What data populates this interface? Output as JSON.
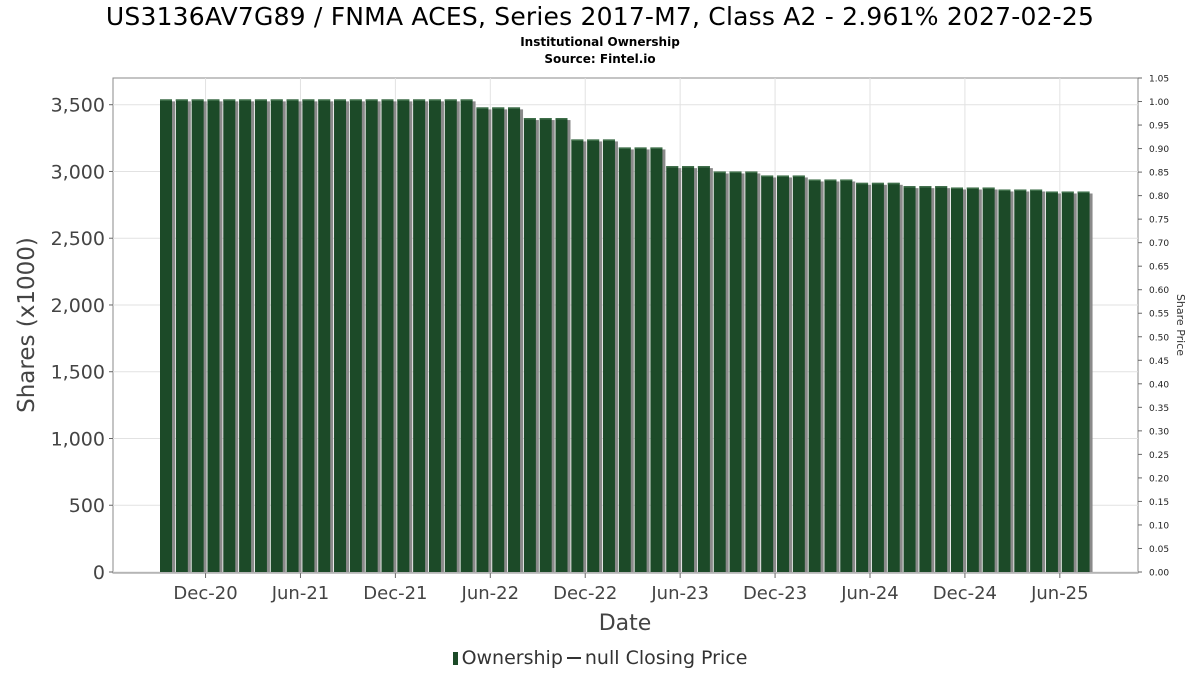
{
  "chart_data": {
    "type": "bar",
    "title": "US3136AV7G89 / FNMA ACES, Series 2017-M7, Class A2 - 2.961% 2027-02-25",
    "subtitle_lines": [
      "Institutional Ownership",
      "Source: Fintel.io"
    ],
    "xlabel": "Date",
    "ylabel": "Shares (x1000)",
    "y2label": "Share Price",
    "ylim": [
      0,
      3700
    ],
    "y_ticks": [
      0,
      500,
      1000,
      1500,
      2000,
      2500,
      3000,
      3500
    ],
    "y_tick_labels": [
      "0",
      "500",
      "1,000",
      "1,500",
      "2,000",
      "2,500",
      "3,000",
      "3,500"
    ],
    "y2lim": [
      0,
      1.05
    ],
    "y2_tick_labels": [
      "0.00",
      "0.05",
      "0.10",
      "0.15",
      "0.20",
      "0.25",
      "0.30",
      "0.35",
      "0.40",
      "0.45",
      "0.50",
      "0.55",
      "0.60",
      "0.65",
      "0.70",
      "0.75",
      "0.80",
      "0.85",
      "0.90",
      "0.95",
      "1.00",
      "1.05"
    ],
    "x_tick_labels": [
      "Dec-20",
      "Jun-21",
      "Dec-21",
      "Jun-22",
      "Dec-22",
      "Jun-23",
      "Dec-23",
      "Jun-24",
      "Dec-24",
      "Jun-25"
    ],
    "x_tick_bar_index": [
      2.5,
      8.5,
      14.5,
      20.5,
      26.5,
      32.5,
      38.5,
      44.5,
      50.5,
      56.5
    ],
    "grid": true,
    "legend_position": "bottom",
    "series": [
      {
        "name": "Ownership",
        "color": "#1c4a28",
        "values": [
          3540,
          3540,
          3540,
          3540,
          3540,
          3540,
          3540,
          3540,
          3540,
          3540,
          3540,
          3540,
          3540,
          3540,
          3540,
          3540,
          3540,
          3540,
          3540,
          3540,
          3480,
          3480,
          3480,
          3400,
          3400,
          3400,
          3240,
          3240,
          3240,
          3180,
          3180,
          3180,
          3040,
          3040,
          3040,
          3000,
          3000,
          3000,
          2970,
          2970,
          2970,
          2940,
          2940,
          2940,
          2915,
          2915,
          2915,
          2890,
          2890,
          2890,
          2880,
          2880,
          2880,
          2865,
          2865,
          2865,
          2850,
          2850,
          2850
        ]
      }
    ],
    "legend": [
      {
        "label": "Ownership",
        "kind": "bar"
      },
      {
        "label": "null Closing Price",
        "kind": "line"
      }
    ]
  }
}
